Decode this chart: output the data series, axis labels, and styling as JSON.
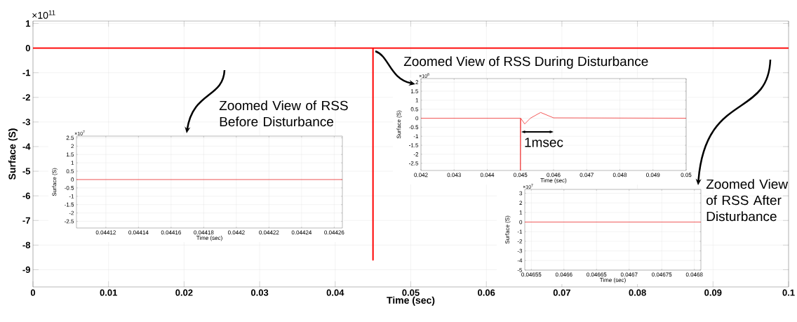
{
  "chart_data": [
    {
      "type": "line",
      "xlabel": "Time (sec)",
      "ylabel": "Surface (S)",
      "xlim": [
        0,
        0.1
      ],
      "ylim": [
        -9.7,
        1.1
      ],
      "xticks": [
        0,
        0.01,
        0.02,
        0.03,
        0.04,
        0.05,
        0.06,
        0.07,
        0.08,
        0.09,
        0.1
      ],
      "yticks": [
        -9,
        -8,
        -7,
        -6,
        -5,
        -4,
        -3,
        -2,
        -1,
        0,
        1
      ],
      "grid": true,
      "color": "#ff0000",
      "x": [
        0,
        0.045,
        0.045,
        0.045,
        0.1
      ],
      "values": [
        0,
        0,
        -8.6,
        0,
        0
      ],
      "annotations": [
        "×10$^{11}$",
        "Zoomed View of RSS Before Disturbance",
        "Zoomed View of RSS During Disturbance",
        "Zoomed View of RSS After Disturbance"
      ]
    },
    {
      "type": "line",
      "xlabel": "Time (sec)",
      "ylabel": "Surface (S)",
      "xlim": [
        0.044102,
        0.044265
      ],
      "ylim": [
        -2.9,
        2.6
      ],
      "xticks": [
        0.04412,
        0.04414,
        0.04416,
        0.04418,
        0.0442,
        0.04422,
        0.04424,
        0.04426
      ],
      "yticks": [
        -2.5,
        -2,
        -1.5,
        -1,
        -0.5,
        0,
        0.5,
        1,
        1.5,
        2,
        2.5
      ],
      "grid": true,
      "color": "#f03030",
      "x": [
        0.044102,
        0.044265
      ],
      "values": [
        0,
        0
      ],
      "annotations": [
        "×10$^{7}$"
      ]
    },
    {
      "type": "line",
      "xlabel": "Time (sec)",
      "ylabel": "Surface (S)",
      "xlim": [
        0.042,
        0.05
      ],
      "ylim": [
        -2.9,
        2.2
      ],
      "xticks": [
        0.042,
        0.043,
        0.044,
        0.045,
        0.046,
        0.047,
        0.048,
        0.049,
        0.05
      ],
      "yticks": [
        -2.5,
        -2,
        -1.5,
        -1,
        -0.5,
        0,
        0.5,
        1,
        1.5,
        2
      ],
      "grid": true,
      "color": "#f03030",
      "x": [
        0.042,
        0.045,
        0.045,
        0.04501,
        0.04513,
        0.0453,
        0.04561,
        0.046,
        0.05
      ],
      "values": [
        0,
        0,
        -2.9,
        0,
        -0.32,
        0,
        0.32,
        0.02,
        0
      ],
      "annotations": [
        "×10$^{8}$",
        "1msec"
      ]
    },
    {
      "type": "line",
      "xlabel": "Time (sec)",
      "ylabel": "Surface (S)",
      "xlim": [
        0.04654,
        0.04681
      ],
      "ylim": [
        -5,
        3.4
      ],
      "xticks": [
        0.04655,
        0.0466,
        0.04665,
        0.0467,
        0.04675,
        0.0468
      ],
      "yticks": [
        -5,
        -4,
        -3,
        -2,
        -1,
        0,
        1,
        2,
        3
      ],
      "grid": true,
      "color": "#f03030",
      "x": [
        0.04654,
        0.04681
      ],
      "values": [
        0,
        0
      ],
      "annotations": [
        "×10$^{7}$"
      ]
    }
  ]
}
